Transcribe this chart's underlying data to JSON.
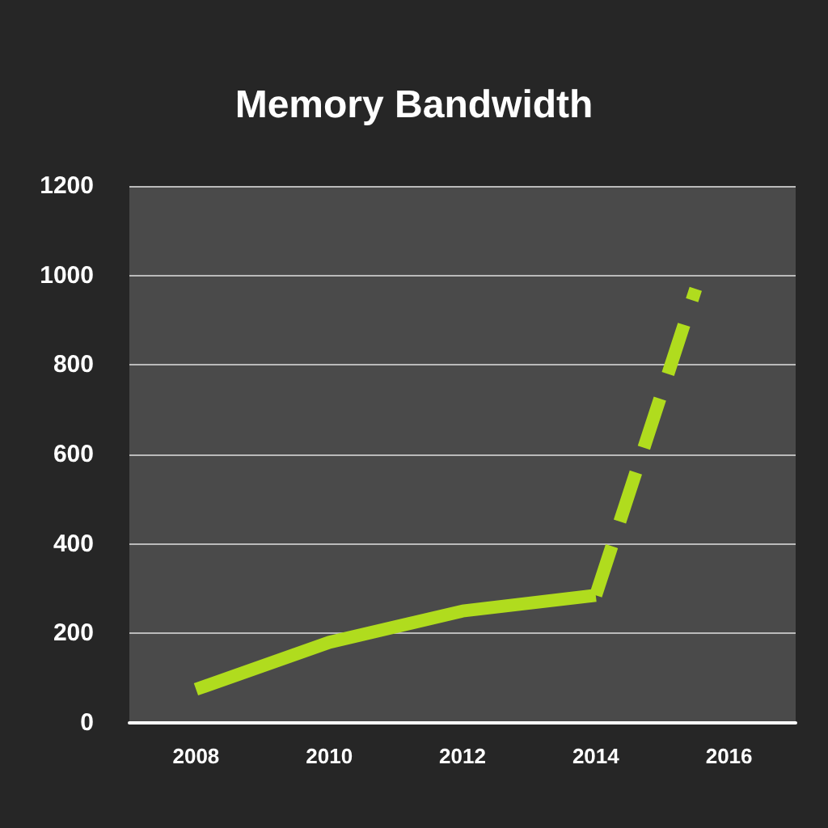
{
  "chart_data": {
    "type": "line",
    "title": "Memory Bandwidth",
    "xlim": [
      2007,
      2017
    ],
    "xticks": [
      2008,
      2010,
      2012,
      2014,
      2016
    ],
    "ylim": [
      0,
      1200
    ],
    "yticks": [
      0,
      200,
      400,
      600,
      800,
      1000,
      1200
    ],
    "grid": "y",
    "marker": "none",
    "series": [
      {
        "color": "#b0dc1e",
        "line_style": "solid",
        "x": [
          2008,
          2010,
          2012,
          2014
        ],
        "values": [
          75,
          180,
          250,
          285
        ]
      },
      {
        "color": "#b0dc1e",
        "line_style": "dashed",
        "x": [
          2014,
          2015.5
        ],
        "values": [
          285,
          970
        ]
      }
    ]
  }
}
